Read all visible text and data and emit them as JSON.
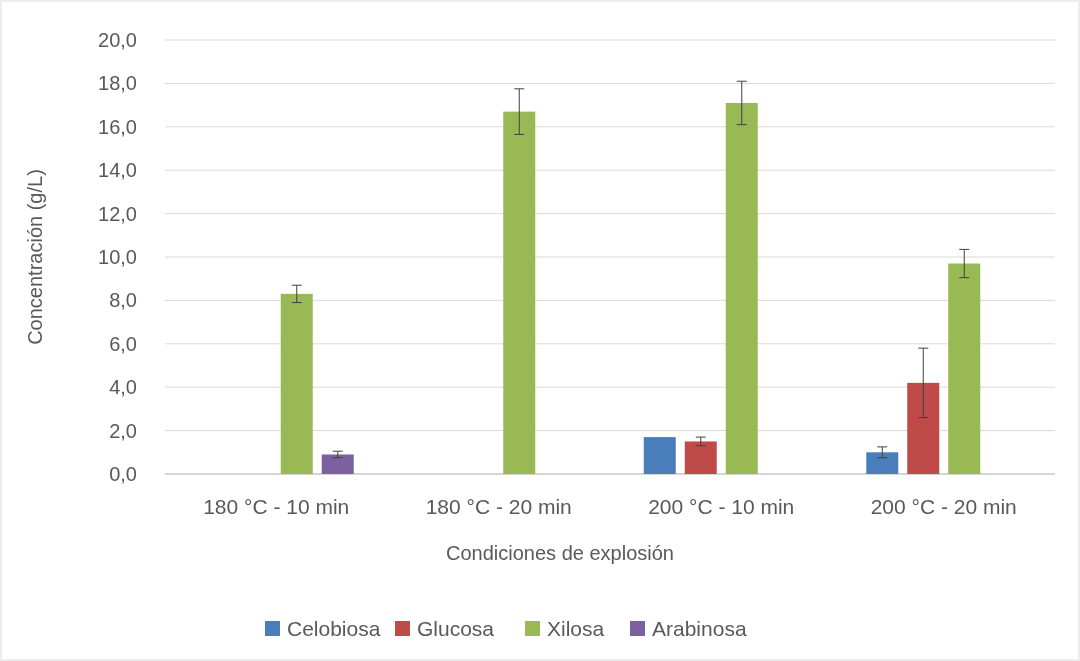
{
  "chart_data": {
    "type": "bar",
    "xlabel": "Condiciones de explosión",
    "ylabel": "Concentración (g/L)",
    "categories": [
      "180 °C - 10 min",
      "180 °C - 20 min",
      "200 °C - 10 min",
      "200 °C - 20 min"
    ],
    "series": [
      {
        "name": "Celobiosa",
        "color": "#4a7ebb",
        "values": [
          0,
          0,
          1.7,
          1.0
        ],
        "errors": [
          null,
          null,
          null,
          0.25
        ]
      },
      {
        "name": "Glucosa",
        "color": "#be4b48",
        "values": [
          0,
          0,
          1.5,
          4.2
        ],
        "errors": [
          null,
          null,
          0.2,
          1.6
        ]
      },
      {
        "name": "Xilosa",
        "color": "#98b954",
        "values": [
          8.3,
          16.7,
          17.1,
          9.7
        ],
        "errors": [
          0.4,
          1.05,
          1.0,
          0.65
        ]
      },
      {
        "name": "Arabinosa",
        "color": "#7d60a0",
        "values": [
          0.9,
          0,
          0,
          0
        ],
        "errors": [
          0.15,
          null,
          null,
          null
        ]
      }
    ],
    "ylim": [
      0,
      20
    ],
    "yticks": [
      {
        "value": 0,
        "label": "0,0"
      },
      {
        "value": 2,
        "label": "2,0"
      },
      {
        "value": 4,
        "label": "4,0"
      },
      {
        "value": 6,
        "label": "6,0"
      },
      {
        "value": 8,
        "label": "8,0"
      },
      {
        "value": 10,
        "label": "10,0"
      },
      {
        "value": 12,
        "label": "12,0"
      },
      {
        "value": 14,
        "label": "14,0"
      },
      {
        "value": 16,
        "label": "16,0"
      },
      {
        "value": 18,
        "label": "18,0"
      },
      {
        "value": 20,
        "label": "20,0"
      }
    ],
    "grid": "y",
    "legend": "bottom"
  }
}
